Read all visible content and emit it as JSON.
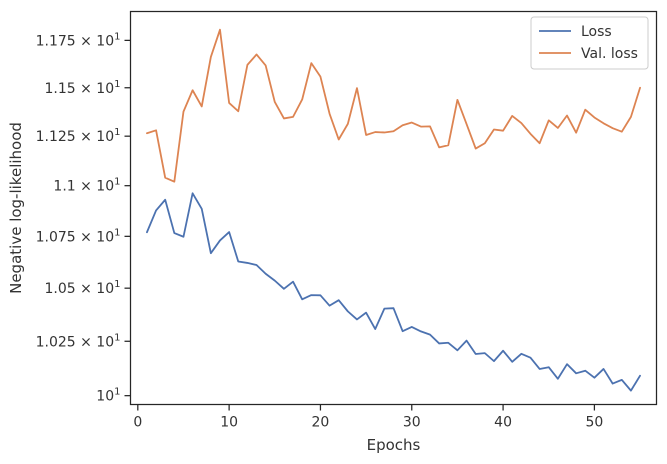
{
  "chart_data": {
    "type": "line",
    "xlabel": "Epochs",
    "ylabel": "Negative log-likelihood",
    "xlim": [
      -0.8,
      56.8
    ],
    "ylim": [
      9.96,
      11.905
    ],
    "y_scale": "log",
    "grid": false,
    "legend_position": "top-right",
    "x_ticks": [
      0,
      10,
      20,
      30,
      40,
      50
    ],
    "x_tick_labels": [
      "0",
      "10",
      "20",
      "30",
      "40",
      "50"
    ],
    "y_ticks": [
      10,
      10.25,
      10.5,
      10.75,
      11.0,
      11.25,
      11.5,
      11.75
    ],
    "y_tick_labels": [
      {
        "base": "10",
        "exp": "1"
      },
      {
        "base": "1.025 × 10",
        "exp": "1"
      },
      {
        "base": "1.05 × 10",
        "exp": "1"
      },
      {
        "base": "1.075 × 10",
        "exp": "1"
      },
      {
        "base": "1.1 × 10",
        "exp": "1"
      },
      {
        "base": "1.125 × 10",
        "exp": "1"
      },
      {
        "base": "1.15 × 10",
        "exp": "1"
      },
      {
        "base": "1.175 × 10",
        "exp": "1"
      }
    ],
    "x": [
      1,
      2,
      3,
      4,
      5,
      6,
      7,
      8,
      9,
      10,
      11,
      12,
      13,
      14,
      15,
      16,
      17,
      18,
      19,
      20,
      21,
      22,
      23,
      24,
      25,
      26,
      27,
      28,
      29,
      30,
      31,
      32,
      33,
      34,
      35,
      36,
      37,
      38,
      39,
      40,
      41,
      42,
      43,
      44,
      45,
      46,
      47,
      48,
      49,
      50,
      51,
      52,
      53,
      54,
      55
    ],
    "series": [
      {
        "name": "Loss",
        "color": "#4c72b0",
        "values": [
          10.77,
          10.877,
          10.93,
          10.766,
          10.748,
          10.962,
          10.885,
          10.668,
          10.73,
          10.771,
          10.628,
          10.621,
          10.611,
          10.569,
          10.536,
          10.497,
          10.531,
          10.447,
          10.467,
          10.466,
          10.417,
          10.443,
          10.39,
          10.352,
          10.384,
          10.307,
          10.403,
          10.405,
          10.297,
          10.317,
          10.296,
          10.281,
          10.24,
          10.243,
          10.208,
          10.253,
          10.191,
          10.195,
          10.158,
          10.206,
          10.155,
          10.192,
          10.174,
          10.122,
          10.13,
          10.077,
          10.144,
          10.102,
          10.114,
          10.082,
          10.122,
          10.055,
          10.072,
          10.023,
          10.091
        ]
      },
      {
        "name": "Val. loss",
        "color": "#dd8452",
        "values": [
          11.265,
          11.28,
          11.04,
          11.02,
          11.376,
          11.487,
          11.403,
          11.662,
          11.807,
          11.421,
          11.378,
          11.62,
          11.675,
          11.617,
          11.426,
          11.341,
          11.349,
          11.439,
          11.629,
          11.558,
          11.365,
          11.233,
          11.313,
          11.498,
          11.256,
          11.271,
          11.269,
          11.275,
          11.306,
          11.32,
          11.299,
          11.3,
          11.193,
          11.204,
          11.437,
          11.312,
          11.187,
          11.214,
          11.284,
          11.278,
          11.354,
          11.317,
          11.262,
          11.214,
          11.331,
          11.292,
          11.356,
          11.268,
          11.386,
          11.346,
          11.316,
          11.291,
          11.273,
          11.349,
          11.5
        ]
      }
    ]
  }
}
